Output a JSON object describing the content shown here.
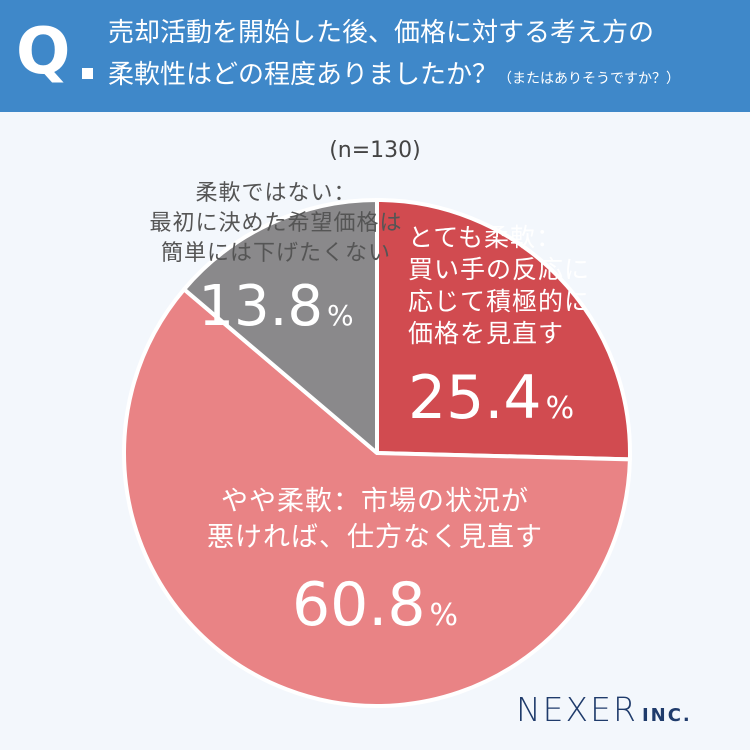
{
  "question": {
    "mark": "Q",
    "line1": "売却活動を開始した後、価格に対する考え方の",
    "line2": "柔軟性はどの程度ありましたか？",
    "note": "（またはありそうですか？）"
  },
  "sample_size": "(n=130)",
  "logo": {
    "name": "NEXER",
    "suffix": "INC."
  },
  "colors": {
    "header": "#3f88c9",
    "slice_very_flexible": "#d14b50",
    "slice_somewhat_flexible": "#e98385",
    "slice_not_flexible": "#8a898b",
    "logo": "#1f3b6b"
  },
  "chart_data": {
    "type": "pie",
    "title": "",
    "start_angle_deg": 0,
    "direction": "clockwise",
    "slices": [
      {
        "label_lines": [
          "とても柔軟：",
          "買い手の反応に",
          "応じて積極的に",
          "価格を見直す"
        ],
        "value": 25.4,
        "display_value": "25.4",
        "unit": "%",
        "color": "#d14b50"
      },
      {
        "label_lines": [
          "やや柔軟：市場の状況が",
          "悪ければ、仕方なく見直す"
        ],
        "value": 60.8,
        "display_value": "60.8",
        "unit": "%",
        "color": "#e98385"
      },
      {
        "label_lines": [
          "柔軟ではない：",
          "最初に決めた希望価格は",
          "簡単には下げたくない"
        ],
        "value": 13.8,
        "display_value": "13.8",
        "unit": "%",
        "color": "#8a898b"
      }
    ]
  }
}
